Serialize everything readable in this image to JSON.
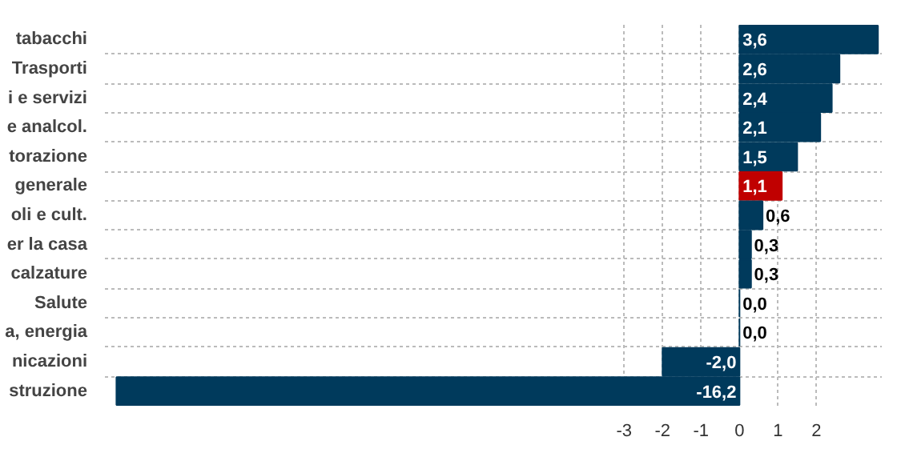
{
  "chart_data": {
    "type": "bar",
    "orientation": "horizontal",
    "categories": [
      "tabacchi",
      "Trasporti",
      "i e servizi",
      "e analcol.",
      "torazione",
      "generale",
      "oli e cult.",
      "er la casa",
      "calzature",
      "Salute",
      "a, energia",
      "nicazioni",
      "struzione"
    ],
    "values": [
      3.6,
      2.6,
      2.4,
      2.1,
      1.5,
      1.1,
      0.6,
      0.3,
      0.3,
      0.0,
      0.0,
      -2.0,
      -16.2
    ],
    "value_labels": [
      "3,6",
      "2,6",
      "2,4",
      "2,1",
      "1,5",
      "1,1",
      "0,6",
      "0,3",
      "0,3",
      "0,0",
      "0,0",
      "-2,0",
      "-16,2"
    ],
    "colors": [
      "#003a5c",
      "#003a5c",
      "#003a5c",
      "#003a5c",
      "#003a5c",
      "#c00000",
      "#003a5c",
      "#003a5c",
      "#003a5c",
      "#003a5c",
      "#003a5c",
      "#003a5c",
      "#003a5c"
    ],
    "xlim": [
      -16.5,
      3.7
    ],
    "xticks": [
      -3,
      -2,
      -1,
      0,
      1,
      2
    ],
    "grid": true
  }
}
